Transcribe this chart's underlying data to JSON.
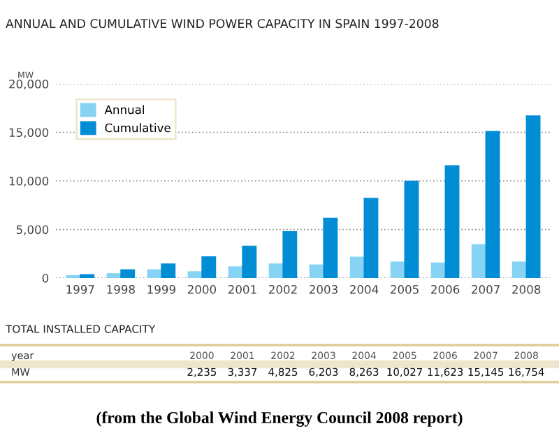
{
  "chart_data": {
    "type": "bar",
    "title": "ANNUAL AND CUMULATIVE WIND POWER CAPACITY IN SPAIN 1997-2008",
    "ylabel": "MW",
    "categories": [
      "1997",
      "1998",
      "1999",
      "2000",
      "2001",
      "2002",
      "2003",
      "2004",
      "2005",
      "2006",
      "2007",
      "2008"
    ],
    "series": [
      {
        "name": "Annual",
        "color": "#87d3f3",
        "values": [
          300,
          500,
          900,
          700,
          1200,
          1500,
          1400,
          2200,
          1700,
          1600,
          3500,
          1700
        ]
      },
      {
        "name": "Cumulative",
        "color": "#008dd5",
        "values": [
          400,
          900,
          1500,
          2235,
          3337,
          4825,
          6203,
          8263,
          10027,
          11623,
          15145,
          16754
        ],
        "value_labels": [
          null,
          null,
          null,
          "2,235",
          "3,337",
          "4,825",
          "6,203",
          "8,263",
          "10,027",
          "11,623",
          "15,145",
          "16,754"
        ]
      }
    ],
    "ylim": [
      0,
      20000
    ],
    "yticks": [
      {
        "value": 0,
        "label": "0"
      },
      {
        "value": 5000,
        "label": "5,000"
      },
      {
        "value": 10000,
        "label": "10,000"
      },
      {
        "value": 15000,
        "label": "15,000"
      },
      {
        "value": 20000,
        "label": "20,000"
      }
    ],
    "grid": "y",
    "legend": "top left",
    "annotations": [
      "TOTAL INSTALLED CAPACITY",
      "year",
      "MW",
      "(from the Global Wind Energy Council 2008 report)"
    ]
  }
}
